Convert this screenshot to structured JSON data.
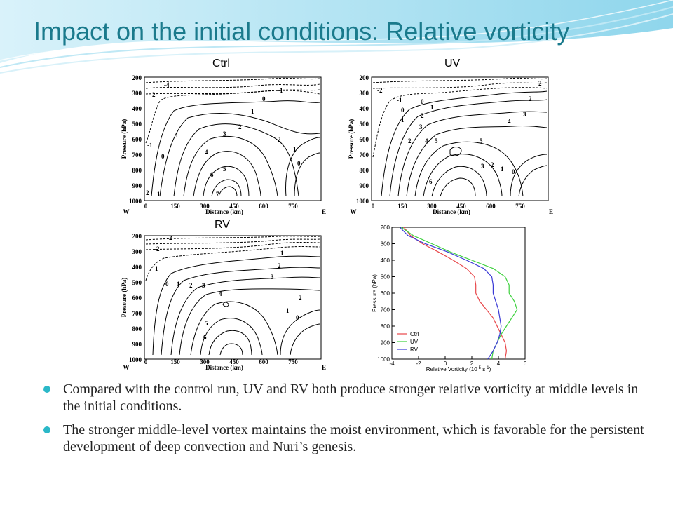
{
  "slide": {
    "title": "Impact on the initial conditions: Relative vorticity",
    "accent_color": "#1a7a8c",
    "bullet_color": "#2bb8c8"
  },
  "bullets": [
    "Compared with the control run, UV and RV both produce stronger relative vorticity at middle levels in the initial conditions.",
    "The stronger middle-level vortex maintains the moist environment, which is favorable for the persistent development of deep convection and Nuri’s genesis."
  ],
  "chart_data": [
    {
      "type": "contour",
      "label": "Ctrl",
      "xlabel": "Distance (km)",
      "ylabel": "Pressure (hPa)",
      "x_ticks": [
        "W",
        "0",
        "150",
        "300",
        "450",
        "600",
        "750",
        "E"
      ],
      "y_ticks": [
        "200",
        "300",
        "400",
        "500",
        "600",
        "700",
        "800",
        "900",
        "1000"
      ],
      "contour_labels": [
        "-4",
        "-2",
        "-1",
        "0",
        "1",
        "1",
        "2",
        "2",
        "3",
        "4",
        "5",
        "6",
        "7",
        "-1",
        "1",
        "0",
        "0",
        "1",
        "2"
      ]
    },
    {
      "type": "contour",
      "label": "UV",
      "xlabel": "Distance (km)",
      "ylabel": "Pressure (hPa)",
      "x_ticks": [
        "W",
        "0",
        "150",
        "300",
        "450",
        "600",
        "750",
        "E"
      ],
      "y_ticks": [
        "200",
        "300",
        "400",
        "500",
        "600",
        "700",
        "800",
        "900",
        "1000"
      ],
      "contour_labels": [
        "-2",
        "-1",
        "0",
        "0",
        "1",
        "1",
        "2",
        "2",
        "3",
        "2",
        "4",
        "5",
        "5",
        "6",
        "3",
        "2",
        "1",
        "0",
        "2",
        "3",
        "4"
      ]
    },
    {
      "type": "contour",
      "label": "RV",
      "xlabel": "Distance (km)",
      "ylabel": "Pressure (hPa)",
      "x_ticks": [
        "W",
        "0",
        "150",
        "300",
        "450",
        "600",
        "750",
        "E"
      ],
      "y_ticks": [
        "200",
        "300",
        "400",
        "500",
        "600",
        "700",
        "800",
        "900",
        "1000"
      ],
      "contour_labels": [
        "-2",
        "-2",
        "-1",
        "0",
        "1",
        "2",
        "3",
        "4",
        "5",
        "6",
        "1",
        "2",
        "3",
        "2",
        "1",
        "0"
      ]
    },
    {
      "type": "line",
      "xlabel": "Relative Vorticity (10",
      "xlabel_sup": "-5",
      "xlabel_tail": " s",
      "xlabel_sup2": "-1",
      "xlabel_end": ")",
      "ylabel": "Pressure (hPa)",
      "x_ticks": [
        "-4",
        "-2",
        "0",
        "2",
        "4",
        "6"
      ],
      "y_ticks": [
        "200",
        "300",
        "400",
        "500",
        "600",
        "700",
        "800",
        "900",
        "1000"
      ],
      "xlim": [
        -4,
        6
      ],
      "ylim": [
        200,
        1000
      ],
      "series": [
        {
          "name": "Ctrl",
          "color": "#e8474a",
          "p": [
            200,
            250,
            300,
            350,
            400,
            450,
            500,
            550,
            600,
            650,
            700,
            750,
            800,
            850,
            900,
            950,
            1000
          ],
          "v": [
            -3.1,
            -2.6,
            -1.7,
            -0.5,
            0.6,
            1.6,
            2.2,
            2.3,
            2.3,
            2.6,
            3.1,
            3.6,
            3.9,
            4.2,
            4.5,
            4.6,
            4.5
          ]
        },
        {
          "name": "UV",
          "color": "#3ed13e",
          "p": [
            200,
            250,
            300,
            350,
            400,
            450,
            500,
            550,
            600,
            650,
            700,
            750,
            800,
            850,
            900,
            950,
            1000
          ],
          "v": [
            -3.3,
            -2.4,
            -1.0,
            0.4,
            2.0,
            3.6,
            4.5,
            4.8,
            4.8,
            5.2,
            5.4,
            5.0,
            4.6,
            4.2,
            3.9,
            3.6,
            3.5
          ]
        },
        {
          "name": "RV",
          "color": "#3b3bd6",
          "p": [
            200,
            250,
            300,
            350,
            400,
            450,
            500,
            550,
            600,
            650,
            700,
            750,
            800,
            850,
            900,
            950,
            1000
          ],
          "v": [
            -3.4,
            -2.8,
            -1.5,
            0.2,
            1.6,
            2.9,
            3.5,
            3.6,
            3.6,
            3.8,
            4.0,
            4.1,
            4.2,
            4.1,
            3.9,
            3.6,
            3.2
          ]
        }
      ]
    }
  ]
}
